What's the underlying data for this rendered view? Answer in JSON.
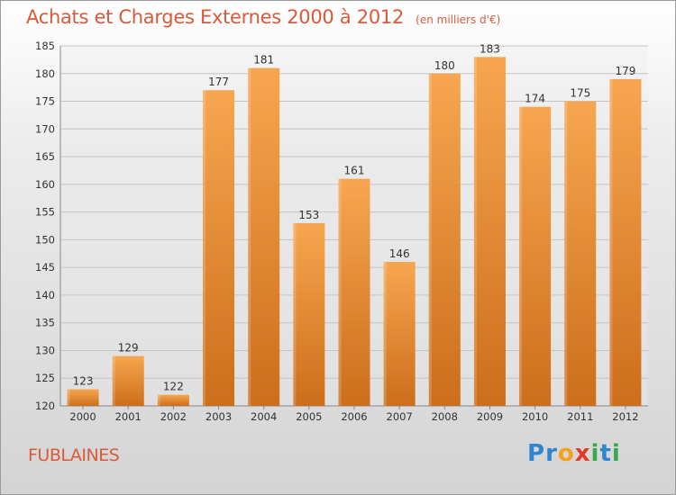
{
  "chart_data": {
    "type": "bar",
    "title": "Achats et Charges Externes 2000 à 2012",
    "subtitle": "(en milliers d'€)",
    "categories": [
      "2000",
      "2001",
      "2002",
      "2003",
      "2004",
      "2005",
      "2006",
      "2007",
      "2008",
      "2009",
      "2010",
      "2011",
      "2012"
    ],
    "values": [
      123,
      129,
      122,
      177,
      181,
      153,
      161,
      146,
      180,
      183,
      174,
      175,
      179
    ],
    "ylim": [
      120,
      185
    ],
    "yticks": [
      120,
      125,
      130,
      135,
      140,
      145,
      150,
      155,
      160,
      165,
      170,
      175,
      180,
      185
    ],
    "grid": true,
    "bar_color_light": "#f7a64f",
    "bar_color_dark": "#cc6e1b",
    "title_color": "#d85a3a"
  },
  "footer": {
    "town": "FUBLAINES",
    "logo_letters": [
      {
        "ch": "P",
        "color": "#2f86cf"
      },
      {
        "ch": "r",
        "color": "#2f86cf"
      },
      {
        "ch": "o",
        "color": "#f4a21a"
      },
      {
        "ch": "x",
        "color": "#e23a2a"
      },
      {
        "ch": "i",
        "color": "#3aa84a"
      },
      {
        "ch": "t",
        "color": "#2f86cf"
      },
      {
        "ch": "i",
        "color": "#3aa84a"
      }
    ]
  }
}
